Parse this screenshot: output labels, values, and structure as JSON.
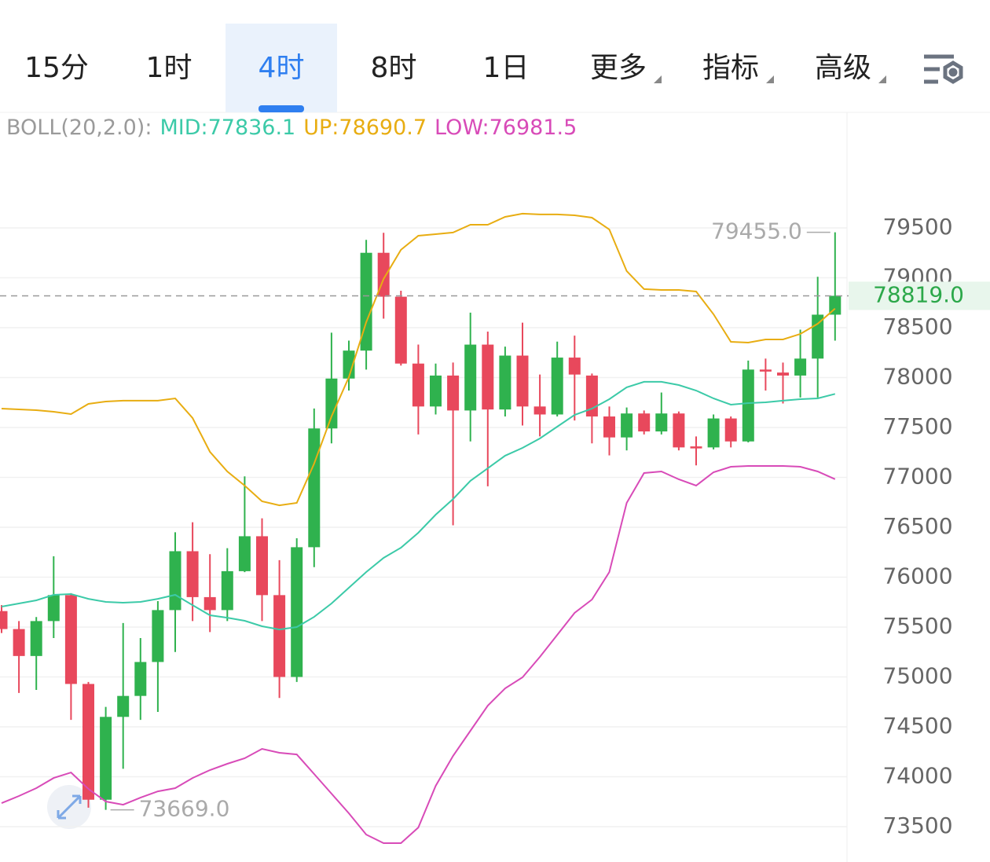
{
  "tabs": [
    {
      "label": "15分"
    },
    {
      "label": "1时"
    },
    {
      "label": "4时",
      "active": true
    },
    {
      "label": "8时"
    },
    {
      "label": "1日"
    },
    {
      "label": "更多",
      "menu": true
    },
    {
      "label": "指标",
      "menu": true
    },
    {
      "label": "高级",
      "menu": true
    }
  ],
  "chart_data": {
    "type": "candlestick",
    "indicator": "BOLL(20,2.0):",
    "up_color": "#2fb24e",
    "down_color": "#e8485c",
    "ylim": [
      73146,
      80657
    ],
    "yticks": [
      73500,
      74000,
      74500,
      75000,
      75500,
      76000,
      76500,
      77000,
      77500,
      78000,
      78500,
      79000,
      79500
    ],
    "grid": true,
    "last_price": {
      "value": 78819,
      "label": "78819.0"
    },
    "high_marker": {
      "value": 79455,
      "label": "79455.0"
    },
    "low_marker": {
      "value": 73669,
      "label": "73669.0"
    },
    "candles": {
      "open": [
        75660,
        75480,
        75210,
        75560,
        75820,
        74930,
        73770,
        74600,
        74810,
        75150,
        75670,
        76260,
        75800,
        75670,
        76060,
        76410,
        75820,
        75000,
        76300,
        77490,
        77990,
        78270,
        79250,
        78810,
        78140,
        77710,
        78020,
        77670,
        78330,
        77680,
        78220,
        77710,
        77630,
        78200,
        78020,
        77610,
        77400,
        77640,
        77460,
        77640,
        77310,
        77300,
        77590,
        77360,
        78080,
        78050,
        78020,
        78190,
        78630
      ],
      "high": [
        75720,
        75560,
        75600,
        76210,
        75840,
        74950,
        74700,
        75540,
        75390,
        75760,
        76450,
        76550,
        76230,
        76290,
        77010,
        76590,
        76170,
        76390,
        77690,
        78450,
        78370,
        79380,
        79450,
        78870,
        78330,
        78140,
        78150,
        78650,
        78460,
        78310,
        78550,
        78030,
        78360,
        78420,
        78040,
        77710,
        77700,
        77670,
        77850,
        77660,
        77410,
        77630,
        77610,
        78170,
        78190,
        78150,
        78480,
        79010,
        79455
      ],
      "low": [
        75440,
        74840,
        74870,
        75390,
        74570,
        73690,
        73669,
        74080,
        74570,
        74650,
        75250,
        75560,
        75450,
        75560,
        76050,
        75560,
        74790,
        74950,
        76100,
        77340,
        77870,
        78080,
        78590,
        78120,
        77430,
        77630,
        76520,
        77360,
        76910,
        77610,
        77520,
        77410,
        77610,
        77570,
        77340,
        77220,
        77270,
        77430,
        77430,
        77270,
        77120,
        77280,
        77300,
        77350,
        77870,
        77740,
        77800,
        77800,
        78370
      ],
      "close": [
        75480,
        75210,
        75560,
        75820,
        74930,
        73770,
        74600,
        74810,
        75150,
        75670,
        76260,
        75800,
        75670,
        76060,
        76410,
        75820,
        75000,
        76300,
        77490,
        77990,
        78270,
        79250,
        78810,
        78140,
        77710,
        78020,
        77670,
        78330,
        77680,
        78220,
        77710,
        77630,
        78200,
        78030,
        77610,
        77400,
        77640,
        77460,
        77640,
        77300,
        77290,
        77590,
        77360,
        78080,
        78060,
        78020,
        78190,
        78630,
        78819
      ]
    },
    "series": [
      {
        "name": "MID:77836.1",
        "color": "#3ccaa8",
        "values": [
          75705,
          75736,
          75768,
          75823,
          75831,
          75783,
          75752,
          75744,
          75752,
          75783,
          75823,
          75720,
          75618,
          75594,
          75563,
          75508,
          75476,
          75500,
          75602,
          75736,
          75894,
          76051,
          76193,
          76295,
          76445,
          76626,
          76783,
          76965,
          77091,
          77217,
          77295,
          77390,
          77508,
          77626,
          77689,
          77783,
          77902,
          77957,
          77957,
          77925,
          77870,
          77791,
          77728,
          77744,
          77752,
          77768,
          77783,
          77791,
          77836
        ]
      },
      {
        "name": "UP:78690.7",
        "color": "#e8ad12",
        "values": [
          77689,
          77681,
          77673,
          77657,
          77634,
          77736,
          77760,
          77768,
          77768,
          77768,
          77791,
          77594,
          77256,
          77059,
          76917,
          76760,
          76720,
          76744,
          77138,
          77610,
          78004,
          78555,
          78988,
          79280,
          79421,
          79437,
          79453,
          79531,
          79531,
          79610,
          79642,
          79634,
          79634,
          79626,
          79602,
          79484,
          79067,
          78886,
          78878,
          78878,
          78862,
          78634,
          78358,
          78350,
          78382,
          78382,
          78437,
          78539,
          78691
        ]
      },
      {
        "name": "LOW:76981.5",
        "color": "#d84bb8",
        "values": [
          73736,
          73807,
          73886,
          73988,
          74043,
          73878,
          73752,
          73720,
          73791,
          73854,
          73886,
          73988,
          74067,
          74130,
          74185,
          74280,
          74240,
          74224,
          74028,
          73831,
          73634,
          73421,
          73335,
          73335,
          73492,
          73909,
          74209,
          74461,
          74713,
          74886,
          74996,
          75201,
          75421,
          75642,
          75776,
          76051,
          76744,
          77043,
          77059,
          76980,
          76917,
          77051,
          77106,
          77114,
          77114,
          77114,
          77106,
          77059,
          76982
        ]
      }
    ]
  }
}
